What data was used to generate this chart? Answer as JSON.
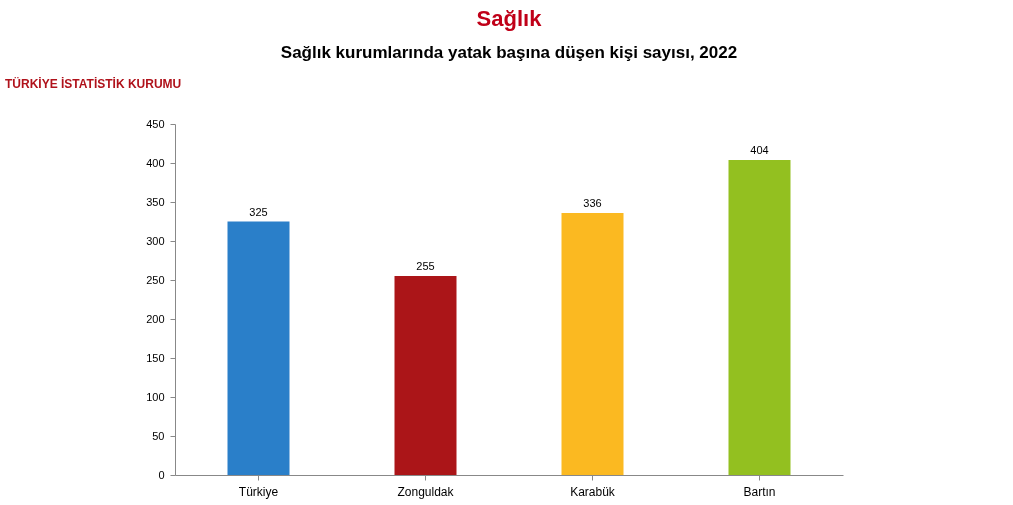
{
  "chart_data": {
    "type": "bar",
    "title": "Sağlık",
    "subtitle": "Sağlık kurumlarında yatak başına düşen kişi sayısı, 2022",
    "annotations": [
      "TÜRKİYE İSTATİSTİK KURUMU"
    ],
    "categories": [
      "Türkiye",
      "Zonguldak",
      "Karabük",
      "Bartın"
    ],
    "values": [
      325,
      255,
      336,
      404
    ],
    "colors": [
      "#2a7fc9",
      "#ab1518",
      "#fbb921",
      "#93c020"
    ],
    "ylim": [
      0,
      450
    ],
    "yticks": [
      0,
      50,
      100,
      150,
      200,
      250,
      300,
      350,
      400,
      450
    ],
    "data_labels": true,
    "grid": false,
    "legend": false
  }
}
